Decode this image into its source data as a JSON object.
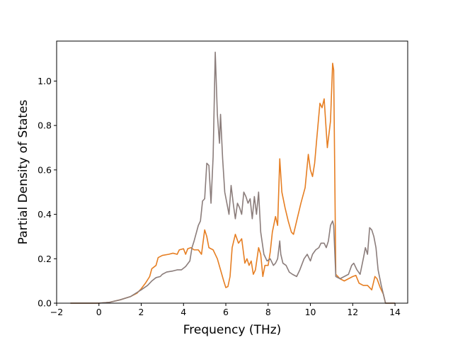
{
  "chart_data": {
    "type": "line",
    "title": "",
    "xlabel": "Frequency (THz)",
    "ylabel": "Partial Density of States",
    "xlim": [
      -2,
      14.6
    ],
    "ylim": [
      0,
      1.18
    ],
    "xticks": [
      -2,
      0,
      2,
      4,
      6,
      8,
      10,
      12,
      14
    ],
    "xtick_labels": [
      "−2",
      "0",
      "2",
      "4",
      "6",
      "8",
      "10",
      "12",
      "14"
    ],
    "yticks": [
      0.0,
      0.2,
      0.4,
      0.6,
      0.8,
      1.0
    ],
    "ytick_labels": [
      "0.0",
      "0.2",
      "0.4",
      "0.6",
      "0.8",
      "1.0"
    ],
    "grid": false,
    "legend": null,
    "series": [
      {
        "color": "#e67e22",
        "points": [
          [
            -1.35,
            0
          ],
          [
            0,
            0
          ],
          [
            0.5,
            0.004
          ],
          [
            1.0,
            0.015
          ],
          [
            1.5,
            0.03
          ],
          [
            1.8,
            0.045
          ],
          [
            2.0,
            0.065
          ],
          [
            2.2,
            0.09
          ],
          [
            2.4,
            0.12
          ],
          [
            2.5,
            0.155
          ],
          [
            2.7,
            0.17
          ],
          [
            2.8,
            0.205
          ],
          [
            3.0,
            0.215
          ],
          [
            3.3,
            0.22
          ],
          [
            3.5,
            0.225
          ],
          [
            3.7,
            0.22
          ],
          [
            3.8,
            0.24
          ],
          [
            4.0,
            0.245
          ],
          [
            4.1,
            0.22
          ],
          [
            4.2,
            0.245
          ],
          [
            4.35,
            0.25
          ],
          [
            4.5,
            0.24
          ],
          [
            4.7,
            0.24
          ],
          [
            4.85,
            0.22
          ],
          [
            5.0,
            0.33
          ],
          [
            5.1,
            0.3
          ],
          [
            5.2,
            0.25
          ],
          [
            5.4,
            0.24
          ],
          [
            5.6,
            0.2
          ],
          [
            5.75,
            0.15
          ],
          [
            5.9,
            0.1
          ],
          [
            6.0,
            0.07
          ],
          [
            6.1,
            0.075
          ],
          [
            6.2,
            0.12
          ],
          [
            6.3,
            0.25
          ],
          [
            6.45,
            0.31
          ],
          [
            6.6,
            0.27
          ],
          [
            6.75,
            0.29
          ],
          [
            6.9,
            0.18
          ],
          [
            7.0,
            0.2
          ],
          [
            7.1,
            0.17
          ],
          [
            7.2,
            0.19
          ],
          [
            7.3,
            0.13
          ],
          [
            7.4,
            0.15
          ],
          [
            7.55,
            0.25
          ],
          [
            7.65,
            0.22
          ],
          [
            7.75,
            0.12
          ],
          [
            7.85,
            0.17
          ],
          [
            8.0,
            0.17
          ],
          [
            8.1,
            0.23
          ],
          [
            8.2,
            0.32
          ],
          [
            8.35,
            0.39
          ],
          [
            8.45,
            0.35
          ],
          [
            8.55,
            0.65
          ],
          [
            8.65,
            0.5
          ],
          [
            8.8,
            0.43
          ],
          [
            8.95,
            0.37
          ],
          [
            9.1,
            0.32
          ],
          [
            9.2,
            0.31
          ],
          [
            9.35,
            0.37
          ],
          [
            9.55,
            0.45
          ],
          [
            9.75,
            0.52
          ],
          [
            9.9,
            0.67
          ],
          [
            10.0,
            0.6
          ],
          [
            10.1,
            0.57
          ],
          [
            10.2,
            0.63
          ],
          [
            10.3,
            0.74
          ],
          [
            10.45,
            0.9
          ],
          [
            10.55,
            0.88
          ],
          [
            10.65,
            0.92
          ],
          [
            10.8,
            0.7
          ],
          [
            10.95,
            0.82
          ],
          [
            11.05,
            1.08
          ],
          [
            11.1,
            1.05
          ],
          [
            11.2,
            0.13
          ],
          [
            11.4,
            0.11
          ],
          [
            11.6,
            0.1
          ],
          [
            11.8,
            0.11
          ],
          [
            12.0,
            0.12
          ],
          [
            12.15,
            0.125
          ],
          [
            12.3,
            0.09
          ],
          [
            12.5,
            0.08
          ],
          [
            12.7,
            0.08
          ],
          [
            12.9,
            0.06
          ],
          [
            13.05,
            0.12
          ],
          [
            13.15,
            0.11
          ],
          [
            13.3,
            0.07
          ],
          [
            13.45,
            0.04
          ],
          [
            13.55,
            0.0
          ],
          [
            14.0,
            0.0
          ]
        ]
      },
      {
        "color": "#8b7d7b",
        "points": [
          [
            -1.35,
            0
          ],
          [
            0,
            0
          ],
          [
            0.5,
            0.004
          ],
          [
            1.0,
            0.015
          ],
          [
            1.5,
            0.03
          ],
          [
            2.0,
            0.06
          ],
          [
            2.3,
            0.08
          ],
          [
            2.5,
            0.1
          ],
          [
            2.7,
            0.115
          ],
          [
            2.9,
            0.12
          ],
          [
            3.0,
            0.13
          ],
          [
            3.2,
            0.14
          ],
          [
            3.5,
            0.145
          ],
          [
            3.7,
            0.15
          ],
          [
            3.9,
            0.15
          ],
          [
            4.1,
            0.165
          ],
          [
            4.3,
            0.19
          ],
          [
            4.4,
            0.25
          ],
          [
            4.5,
            0.28
          ],
          [
            4.7,
            0.35
          ],
          [
            4.8,
            0.37
          ],
          [
            4.9,
            0.46
          ],
          [
            5.0,
            0.47
          ],
          [
            5.1,
            0.63
          ],
          [
            5.2,
            0.62
          ],
          [
            5.3,
            0.45
          ],
          [
            5.4,
            0.66
          ],
          [
            5.5,
            1.13
          ],
          [
            5.6,
            0.85
          ],
          [
            5.7,
            0.72
          ],
          [
            5.75,
            0.85
          ],
          [
            5.85,
            0.65
          ],
          [
            5.95,
            0.5
          ],
          [
            6.05,
            0.45
          ],
          [
            6.15,
            0.4
          ],
          [
            6.25,
            0.53
          ],
          [
            6.35,
            0.45
          ],
          [
            6.45,
            0.38
          ],
          [
            6.55,
            0.45
          ],
          [
            6.65,
            0.43
          ],
          [
            6.75,
            0.4
          ],
          [
            6.85,
            0.5
          ],
          [
            6.95,
            0.48
          ],
          [
            7.05,
            0.45
          ],
          [
            7.15,
            0.47
          ],
          [
            7.25,
            0.38
          ],
          [
            7.35,
            0.48
          ],
          [
            7.45,
            0.4
          ],
          [
            7.55,
            0.5
          ],
          [
            7.65,
            0.32
          ],
          [
            7.8,
            0.22
          ],
          [
            7.95,
            0.19
          ],
          [
            8.1,
            0.2
          ],
          [
            8.25,
            0.17
          ],
          [
            8.35,
            0.18
          ],
          [
            8.45,
            0.2
          ],
          [
            8.55,
            0.28
          ],
          [
            8.6,
            0.22
          ],
          [
            8.7,
            0.18
          ],
          [
            8.85,
            0.17
          ],
          [
            9.0,
            0.14
          ],
          [
            9.15,
            0.13
          ],
          [
            9.35,
            0.12
          ],
          [
            9.5,
            0.15
          ],
          [
            9.7,
            0.2
          ],
          [
            9.85,
            0.22
          ],
          [
            10.0,
            0.19
          ],
          [
            10.1,
            0.22
          ],
          [
            10.25,
            0.24
          ],
          [
            10.4,
            0.25
          ],
          [
            10.5,
            0.27
          ],
          [
            10.65,
            0.27
          ],
          [
            10.75,
            0.25
          ],
          [
            10.85,
            0.28
          ],
          [
            10.95,
            0.35
          ],
          [
            11.05,
            0.37
          ],
          [
            11.1,
            0.35
          ],
          [
            11.2,
            0.12
          ],
          [
            11.4,
            0.11
          ],
          [
            11.6,
            0.12
          ],
          [
            11.8,
            0.13
          ],
          [
            11.95,
            0.17
          ],
          [
            12.05,
            0.18
          ],
          [
            12.2,
            0.15
          ],
          [
            12.35,
            0.13
          ],
          [
            12.5,
            0.2
          ],
          [
            12.6,
            0.25
          ],
          [
            12.7,
            0.22
          ],
          [
            12.8,
            0.34
          ],
          [
            12.9,
            0.33
          ],
          [
            13.0,
            0.3
          ],
          [
            13.1,
            0.25
          ],
          [
            13.2,
            0.15
          ],
          [
            13.35,
            0.08
          ],
          [
            13.5,
            0.02
          ],
          [
            13.55,
            0.0
          ],
          [
            14.0,
            0.0
          ]
        ]
      }
    ]
  }
}
